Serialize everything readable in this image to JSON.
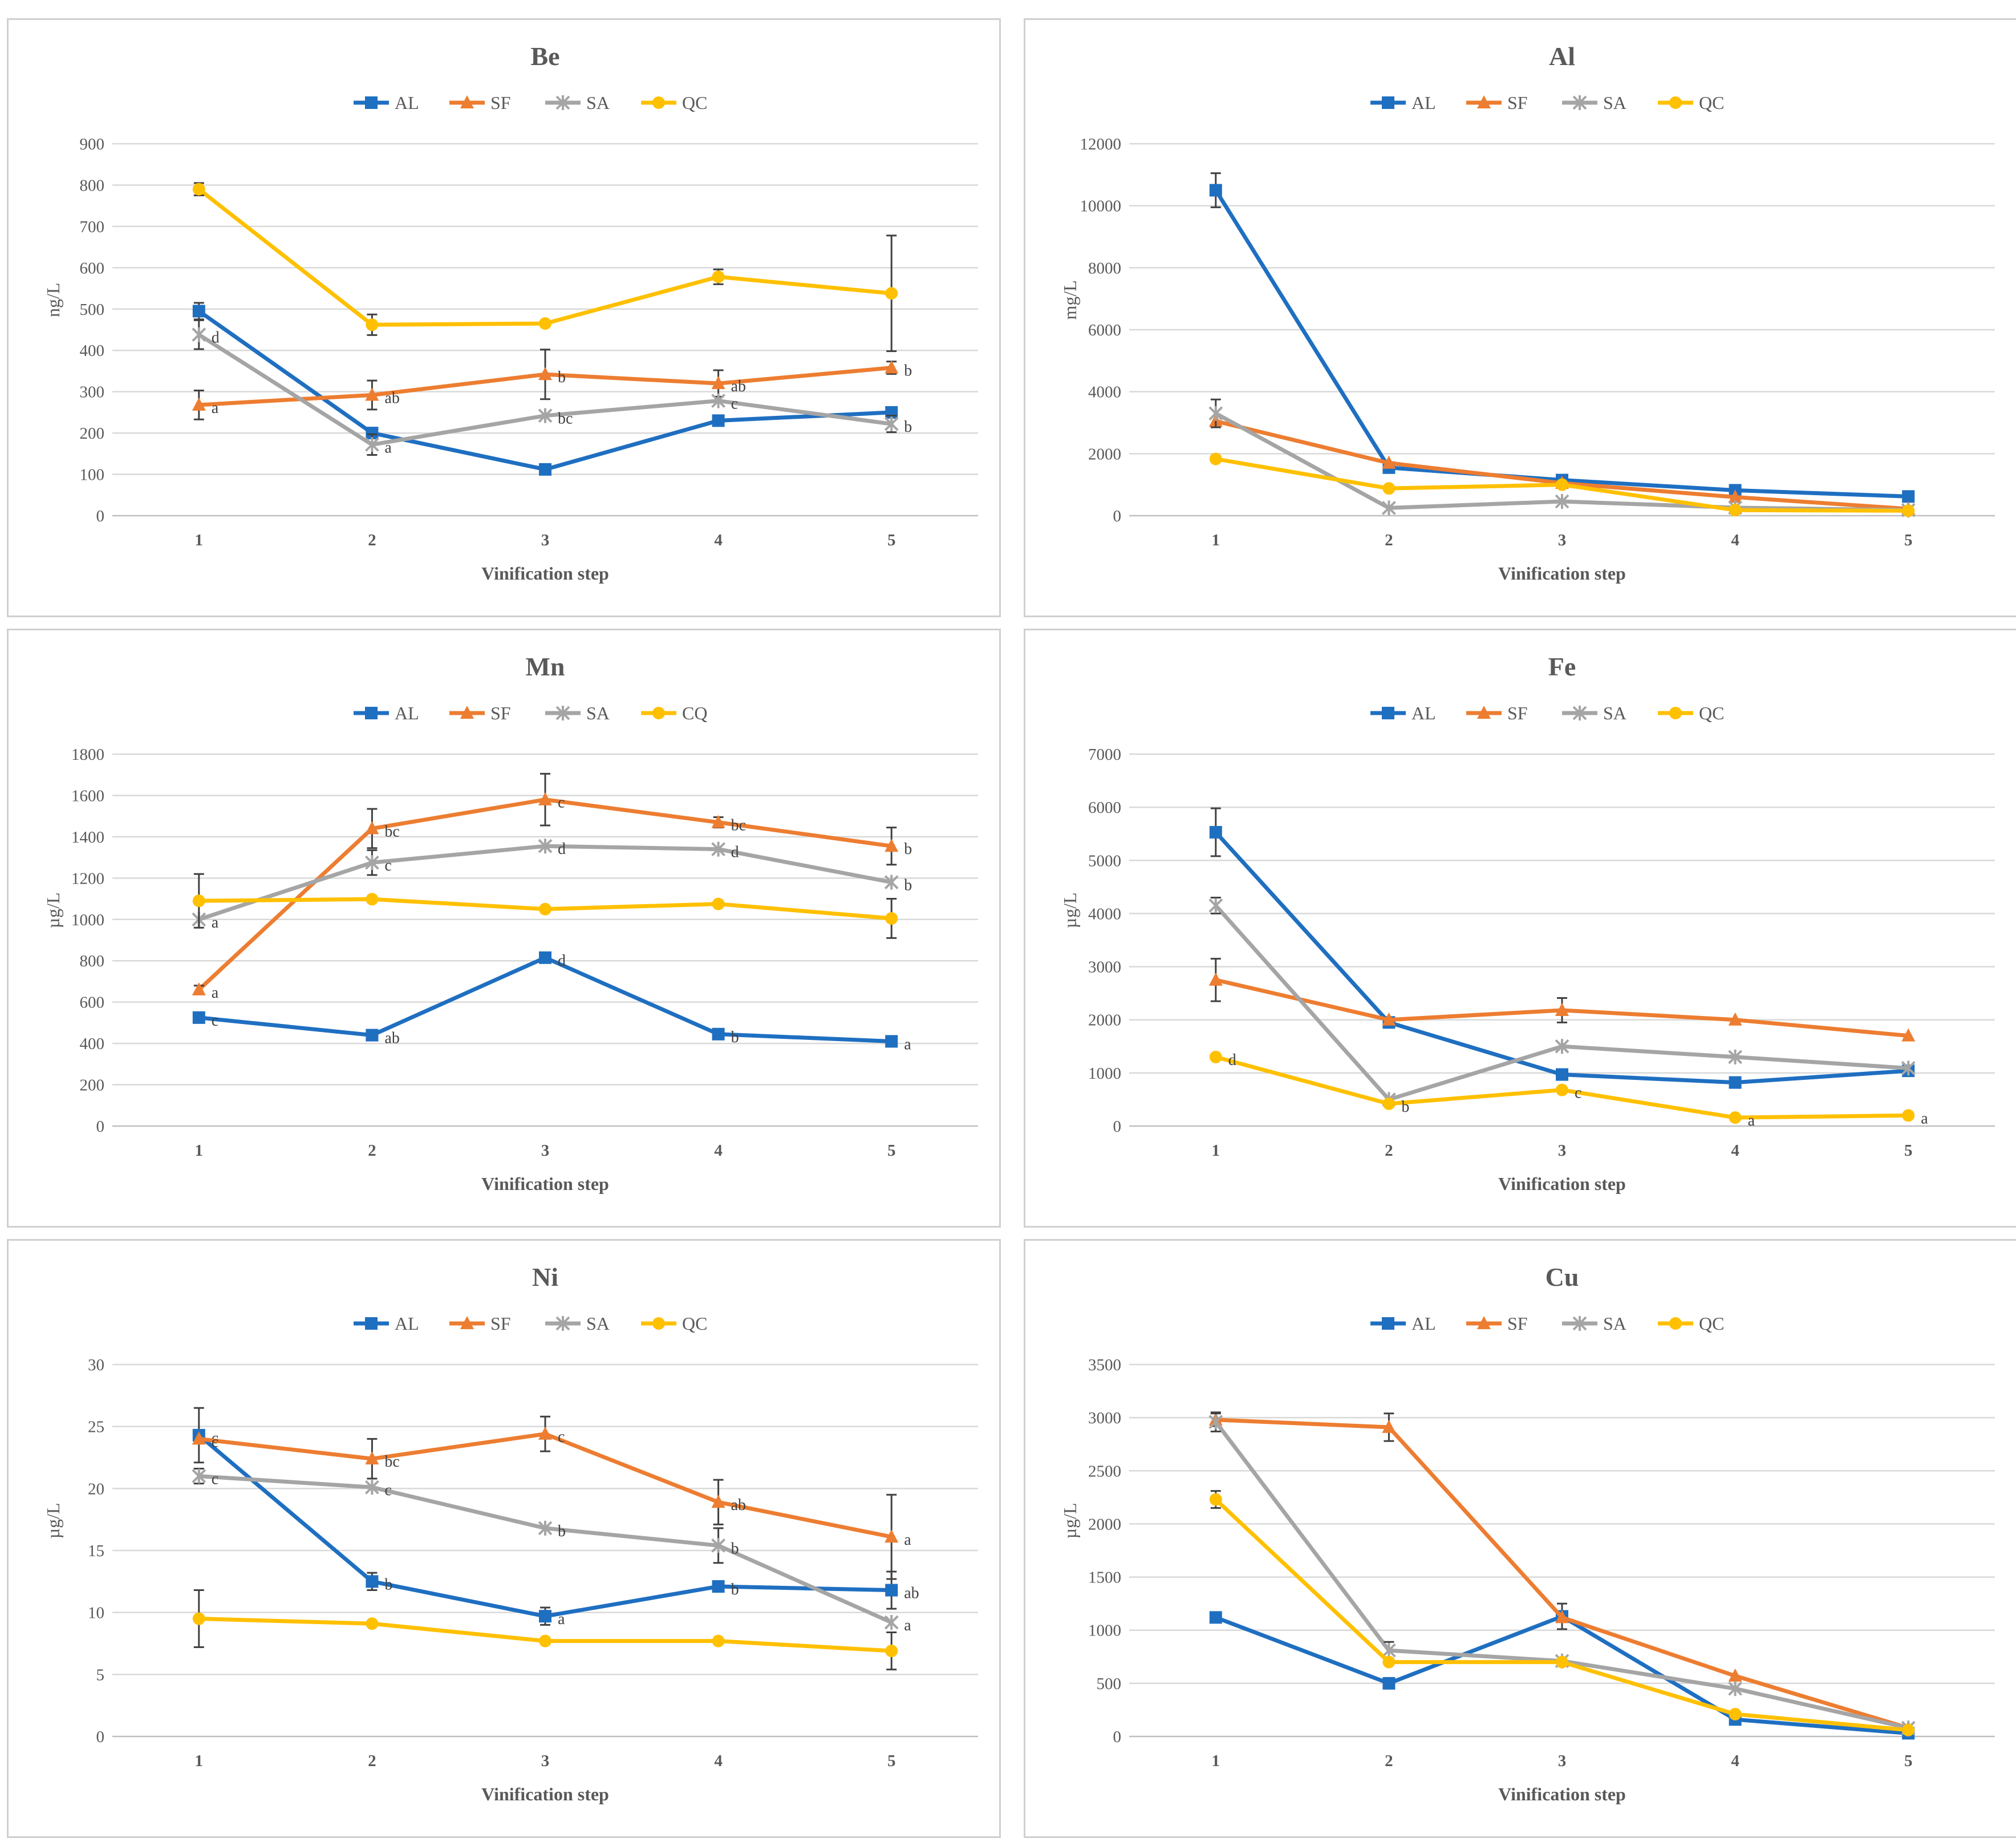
{
  "series_colors": {
    "AL": "#1f6fc1",
    "SF": "#ed7d31",
    "SA": "#a5a5a5",
    "QC": "#ffc000"
  },
  "error_color": "#404040",
  "chart_data": [
    {
      "type": "line",
      "title": "Be",
      "xlabel": "Vinification step",
      "ylabel": "ng/L",
      "categories": [
        "1",
        "2",
        "3",
        "4",
        "5"
      ],
      "ylim": [
        0,
        900
      ],
      "yticks": [
        "0",
        "100",
        "200",
        "300",
        "400",
        "500",
        "600",
        "700",
        "800",
        "900"
      ],
      "legend": [
        "AL",
        "SF",
        "SA",
        "QC"
      ],
      "series": [
        {
          "name": "AL",
          "values": [
            495,
            200,
            112,
            230,
            250
          ],
          "errors": [
            20,
            0,
            0,
            0,
            0
          ],
          "labels": [
            "",
            "",
            "",
            "",
            ""
          ]
        },
        {
          "name": "SF",
          "values": [
            268,
            292,
            342,
            320,
            358
          ],
          "errors": [
            35,
            35,
            60,
            32,
            15
          ],
          "labels": [
            "a",
            "ab",
            "b",
            "ab",
            "b"
          ]
        },
        {
          "name": "SA",
          "values": [
            438,
            172,
            242,
            278,
            222
          ],
          "errors": [
            35,
            25,
            0,
            0,
            20
          ],
          "labels": [
            "d",
            "a",
            "bc",
            "c",
            "b"
          ]
        },
        {
          "name": "QC",
          "values": [
            790,
            462,
            465,
            578,
            538
          ],
          "errors": [
            15,
            25,
            0,
            18,
            140
          ],
          "labels": [
            "",
            "",
            "",
            "",
            ""
          ]
        }
      ]
    },
    {
      "type": "line",
      "title": "Al",
      "xlabel": "Vinification step",
      "ylabel": "mg/L",
      "categories": [
        "1",
        "2",
        "3",
        "4",
        "5"
      ],
      "ylim": [
        0,
        12000
      ],
      "yticks": [
        "0",
        "2000",
        "4000",
        "6000",
        "8000",
        "10000",
        "12000"
      ],
      "legend": [
        "AL",
        "SF",
        "SA",
        "QC"
      ],
      "series": [
        {
          "name": "AL",
          "values": [
            10500,
            1550,
            1150,
            820,
            620
          ],
          "errors": [
            550,
            0,
            0,
            0,
            0
          ],
          "labels": [
            "",
            "",
            "",
            "",
            ""
          ]
        },
        {
          "name": "SF",
          "values": [
            3050,
            1700,
            1050,
            600,
            220
          ],
          "errors": [
            0,
            0,
            0,
            0,
            0
          ],
          "labels": [
            "",
            "",
            "",
            "",
            ""
          ]
        },
        {
          "name": "SA",
          "values": [
            3300,
            250,
            460,
            260,
            180
          ],
          "errors": [
            450,
            0,
            0,
            0,
            0
          ],
          "labels": [
            "",
            "",
            "",
            "",
            ""
          ]
        },
        {
          "name": "QC",
          "values": [
            1830,
            880,
            1000,
            180,
            160
          ],
          "errors": [
            0,
            0,
            0,
            0,
            0
          ],
          "labels": [
            "",
            "",
            "",
            "",
            ""
          ]
        }
      ]
    },
    {
      "type": "line",
      "title": "Mn",
      "xlabel": "Vinification step",
      "ylabel": "µg/L",
      "categories": [
        "1",
        "2",
        "3",
        "4",
        "5"
      ],
      "ylim": [
        0,
        1800
      ],
      "yticks": [
        "0",
        "200",
        "400",
        "600",
        "800",
        "1000",
        "1200",
        "1400",
        "1600",
        "1800"
      ],
      "legend": [
        "AL",
        "SF",
        "SA",
        "CQ"
      ],
      "series": [
        {
          "name": "AL",
          "values": [
            525,
            440,
            815,
            445,
            410
          ],
          "errors": [
            0,
            0,
            0,
            0,
            0
          ],
          "labels": [
            "c",
            "ab",
            "d",
            "b",
            "a"
          ]
        },
        {
          "name": "SF",
          "values": [
            660,
            1440,
            1580,
            1470,
            1355
          ],
          "errors": [
            20,
            95,
            125,
            25,
            90
          ],
          "labels": [
            "a",
            "bc",
            "c",
            "bc",
            "b"
          ]
        },
        {
          "name": "SA",
          "values": [
            1000,
            1275,
            1355,
            1340,
            1180
          ],
          "errors": [
            0,
            60,
            0,
            0,
            0
          ],
          "labels": [
            "a",
            "c",
            "d",
            "d",
            "b"
          ]
        },
        {
          "name": "CQ",
          "values": [
            1090,
            1098,
            1050,
            1075,
            1005
          ],
          "errors": [
            130,
            0,
            0,
            0,
            95
          ],
          "labels": [
            "",
            "",
            "",
            "",
            ""
          ]
        }
      ]
    },
    {
      "type": "line",
      "title": "Fe",
      "xlabel": "Vinification step",
      "ylabel": "µg/L",
      "categories": [
        "1",
        "2",
        "3",
        "4",
        "5"
      ],
      "ylim": [
        0,
        7000
      ],
      "yticks": [
        "0",
        "1000",
        "2000",
        "3000",
        "4000",
        "5000",
        "6000",
        "7000"
      ],
      "legend": [
        "AL",
        "SF",
        "SA",
        "QC"
      ],
      "series": [
        {
          "name": "AL",
          "values": [
            5530,
            1950,
            970,
            820,
            1040
          ],
          "errors": [
            450,
            0,
            0,
            0,
            0
          ],
          "labels": [
            "",
            "",
            "",
            "",
            ""
          ]
        },
        {
          "name": "SF",
          "values": [
            2750,
            2000,
            2180,
            2000,
            1700
          ],
          "errors": [
            400,
            0,
            230,
            0,
            0
          ],
          "labels": [
            "",
            "",
            "",
            "",
            ""
          ]
        },
        {
          "name": "SA",
          "values": [
            4150,
            500,
            1500,
            1300,
            1090
          ],
          "errors": [
            150,
            0,
            0,
            0,
            0
          ],
          "labels": [
            "",
            "",
            "",
            "",
            ""
          ]
        },
        {
          "name": "QC",
          "values": [
            1300,
            420,
            680,
            160,
            200
          ],
          "errors": [
            0,
            0,
            0,
            0,
            0
          ],
          "labels": [
            "d",
            "b",
            "c",
            "a",
            "a"
          ]
        }
      ]
    },
    {
      "type": "line",
      "title": "Ni",
      "xlabel": "Vinification step",
      "ylabel": "µg/L",
      "categories": [
        "1",
        "2",
        "3",
        "4",
        "5"
      ],
      "ylim": [
        0,
        30
      ],
      "yticks": [
        "0",
        "5",
        "10",
        "15",
        "20",
        "25",
        "30"
      ],
      "legend": [
        "AL",
        "SF",
        "SA",
        "QC"
      ],
      "series": [
        {
          "name": "AL",
          "values": [
            24.3,
            12.5,
            9.7,
            12.1,
            11.8
          ],
          "errors": [
            2.2,
            0.7,
            0.7,
            0,
            1.5
          ],
          "labels": [
            "c",
            "b",
            "a",
            "b",
            "ab"
          ]
        },
        {
          "name": "SF",
          "values": [
            24.0,
            22.4,
            24.4,
            18.9,
            16.1
          ],
          "errors": [
            0,
            1.6,
            1.4,
            1.8,
            3.4
          ],
          "labels": [
            "c",
            "bc",
            "c",
            "ab",
            "a"
          ]
        },
        {
          "name": "SA",
          "values": [
            21.0,
            20.1,
            16.8,
            15.4,
            9.2
          ],
          "errors": [
            0.6,
            0,
            0,
            1.4,
            0
          ],
          "labels": [
            "c",
            "c",
            "b",
            "b",
            "a"
          ]
        },
        {
          "name": "QC",
          "values": [
            9.5,
            9.1,
            7.7,
            7.7,
            6.9
          ],
          "errors": [
            2.3,
            0,
            0,
            0,
            1.5
          ],
          "labels": [
            "",
            "",
            "",
            "",
            ""
          ]
        }
      ]
    },
    {
      "type": "line",
      "title": "Cu",
      "xlabel": "Vinification step",
      "ylabel": "µg/L",
      "categories": [
        "1",
        "2",
        "3",
        "4",
        "5"
      ],
      "ylim": [
        0,
        3500
      ],
      "yticks": [
        "0",
        "500",
        "1000",
        "1500",
        "2000",
        "2500",
        "3000",
        "3500"
      ],
      "legend": [
        "AL",
        "SF",
        "SA",
        "QC"
      ],
      "series": [
        {
          "name": "AL",
          "values": [
            1120,
            500,
            1130,
            160,
            30
          ],
          "errors": [
            0,
            0,
            120,
            0,
            0
          ],
          "labels": [
            "",
            "",
            "",
            "",
            ""
          ]
        },
        {
          "name": "SF",
          "values": [
            2980,
            2910,
            1120,
            570,
            80
          ],
          "errors": [
            60,
            130,
            0,
            0,
            0
          ],
          "labels": [
            "",
            "",
            "",
            "",
            ""
          ]
        },
        {
          "name": "SA",
          "values": [
            2960,
            810,
            710,
            450,
            80
          ],
          "errors": [
            90,
            80,
            0,
            0,
            0
          ],
          "labels": [
            "",
            "",
            "",
            "",
            ""
          ]
        },
        {
          "name": "QC",
          "values": [
            2230,
            700,
            700,
            210,
            60
          ],
          "errors": [
            80,
            0,
            0,
            0,
            0
          ],
          "labels": [
            "",
            "",
            "",
            "",
            ""
          ]
        }
      ]
    }
  ]
}
